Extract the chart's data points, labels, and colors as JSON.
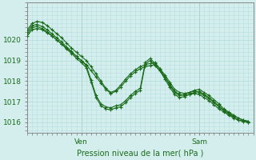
{
  "xlabel": "Pression niveau de la mer( hPa )",
  "bg_color": "#d4eeee",
  "grid_color": "#b8dede",
  "line_color": "#1a6b1a",
  "ylim": [
    1015.5,
    1021.8
  ],
  "xlim": [
    0,
    46
  ],
  "ven_x": 11,
  "sam_x": 35,
  "yticks": [
    1016,
    1017,
    1018,
    1019,
    1020
  ],
  "series": [
    [
      0,
      1020.2,
      1,
      1020.5,
      2,
      1020.55,
      3,
      1020.5,
      4,
      1020.35,
      5,
      1020.2,
      6,
      1020.0,
      7,
      1019.8,
      8,
      1019.6,
      9,
      1019.4,
      10,
      1019.2,
      11,
      1019.0,
      12,
      1018.8,
      13,
      1018.5,
      14,
      1018.2,
      15,
      1017.9,
      16,
      1017.6,
      17,
      1017.4,
      18,
      1017.5,
      19,
      1017.7,
      20,
      1018.0,
      21,
      1018.25,
      22,
      1018.45,
      23,
      1018.6,
      24,
      1018.7,
      25,
      1018.75,
      26,
      1018.8,
      27,
      1018.5,
      28,
      1018.2,
      29,
      1017.85,
      30,
      1017.5,
      31,
      1017.35,
      32,
      1017.3,
      33,
      1017.35,
      34,
      1017.4,
      35,
      1017.35,
      36,
      1017.2,
      37,
      1017.05,
      38,
      1016.85,
      39,
      1016.65,
      40,
      1016.5,
      41,
      1016.35,
      42,
      1016.2,
      43,
      1016.1,
      44,
      1016.05,
      45,
      1016.0
    ],
    [
      0,
      1020.5,
      1,
      1020.8,
      2,
      1020.9,
      3,
      1020.85,
      4,
      1020.7,
      5,
      1020.5,
      6,
      1020.3,
      7,
      1020.1,
      8,
      1019.85,
      9,
      1019.6,
      10,
      1019.4,
      11,
      1019.2,
      12,
      1019.0,
      13,
      1018.7,
      14,
      1018.35,
      15,
      1018.0,
      16,
      1017.65,
      17,
      1017.45,
      18,
      1017.55,
      19,
      1017.8,
      20,
      1018.1,
      21,
      1018.35,
      22,
      1018.55,
      23,
      1018.7,
      24,
      1018.8,
      25,
      1018.85,
      26,
      1018.9,
      27,
      1018.6,
      28,
      1018.3,
      29,
      1017.95,
      30,
      1017.6,
      31,
      1017.45,
      32,
      1017.4,
      33,
      1017.45,
      34,
      1017.5,
      35,
      1017.45,
      36,
      1017.3,
      37,
      1017.15,
      38,
      1016.95,
      39,
      1016.75,
      40,
      1016.6,
      41,
      1016.45,
      42,
      1016.3,
      43,
      1016.2,
      44,
      1016.1,
      45,
      1016.05
    ],
    [
      0,
      1020.3,
      1,
      1020.6,
      2,
      1020.65,
      3,
      1020.55,
      4,
      1020.4,
      5,
      1020.2,
      6,
      1020.0,
      7,
      1019.8,
      8,
      1019.55,
      9,
      1019.35,
      10,
      1019.1,
      11,
      1018.9,
      12,
      1018.65,
      13,
      1017.95,
      14,
      1017.2,
      15,
      1016.8,
      16,
      1016.65,
      17,
      1016.6,
      18,
      1016.7,
      19,
      1016.75,
      20,
      1016.95,
      21,
      1017.2,
      22,
      1017.4,
      23,
      1017.55,
      24,
      1018.8,
      25,
      1019.0,
      26,
      1018.75,
      27,
      1018.5,
      28,
      1018.1,
      29,
      1017.7,
      30,
      1017.35,
      31,
      1017.2,
      32,
      1017.25,
      33,
      1017.35,
      34,
      1017.45,
      35,
      1017.5,
      36,
      1017.35,
      37,
      1017.2,
      38,
      1017.0,
      39,
      1016.8,
      40,
      1016.55,
      41,
      1016.4,
      42,
      1016.25,
      43,
      1016.1,
      44,
      1016.05,
      45,
      1016.0
    ],
    [
      0,
      1020.4,
      1,
      1020.7,
      2,
      1020.75,
      3,
      1020.65,
      4,
      1020.5,
      5,
      1020.3,
      6,
      1020.1,
      7,
      1019.9,
      8,
      1019.65,
      9,
      1019.45,
      10,
      1019.2,
      11,
      1019.0,
      12,
      1018.75,
      13,
      1018.05,
      14,
      1017.3,
      15,
      1016.9,
      16,
      1016.75,
      17,
      1016.7,
      18,
      1016.8,
      19,
      1016.85,
      20,
      1017.05,
      21,
      1017.3,
      22,
      1017.5,
      23,
      1017.65,
      24,
      1018.9,
      25,
      1019.1,
      26,
      1018.85,
      27,
      1018.6,
      28,
      1018.2,
      29,
      1017.8,
      30,
      1017.45,
      31,
      1017.3,
      32,
      1017.35,
      33,
      1017.45,
      34,
      1017.55,
      35,
      1017.6,
      36,
      1017.45,
      37,
      1017.3,
      38,
      1017.1,
      39,
      1016.9,
      40,
      1016.65,
      41,
      1016.5,
      42,
      1016.35,
      43,
      1016.2,
      44,
      1016.1,
      45,
      1016.05
    ]
  ]
}
